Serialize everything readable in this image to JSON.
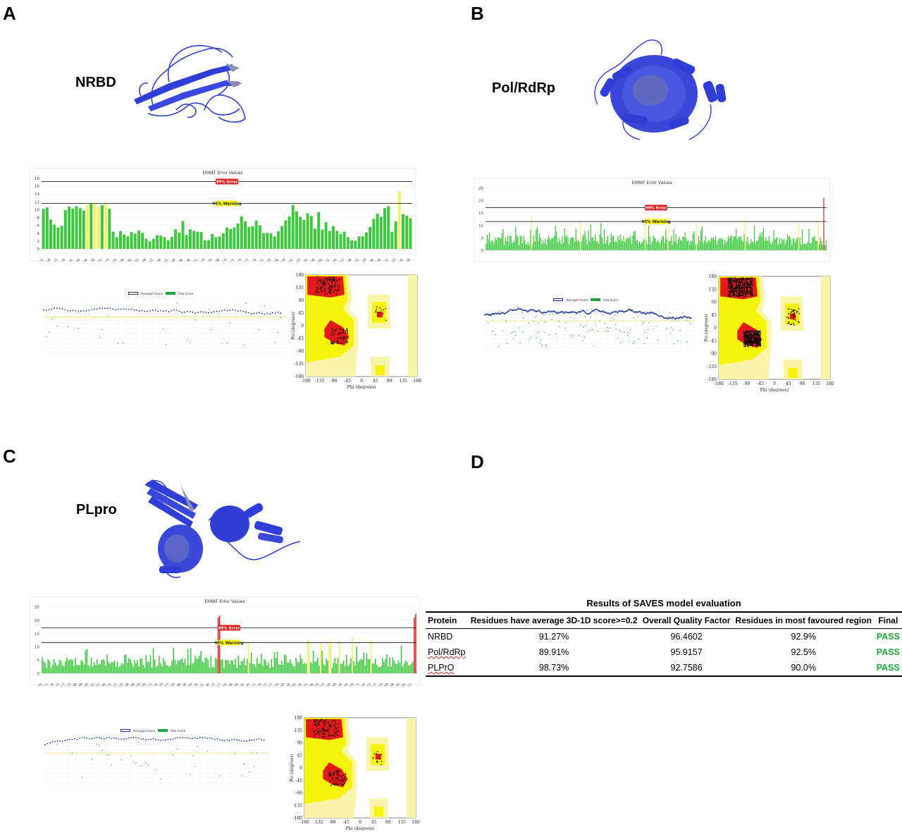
{
  "panels": {
    "A": {
      "letter": "A",
      "protein": "NRBD"
    },
    "B": {
      "letter": "B",
      "protein": "Pol/RdRp"
    },
    "C": {
      "letter": "C",
      "protein": "PLpro"
    },
    "D": {
      "letter": "D"
    }
  },
  "errat": {
    "title": "ERRAT Error Values",
    "error_label": "99% Error",
    "warning_label": "95% Warning"
  },
  "profile_legend": {
    "averaged": "Averaged Score",
    "raw": "Raw Score"
  },
  "rama": {
    "xlabel": "Phi (degrees)",
    "ylabel": "Psi (degrees)"
  },
  "chart_data": [
    {
      "type": "bar",
      "panel": "A",
      "title": "ERRAT Error Values",
      "ylim": [
        0,
        18
      ],
      "yticks": [
        0,
        2,
        4,
        6,
        8,
        10,
        12,
        14,
        16,
        18
      ],
      "x_start": 52,
      "x_end": 168,
      "error_line": 17.2,
      "warning_line": 11.6,
      "values": [
        10.2,
        10.6,
        7.5,
        6.2,
        5.4,
        5.9,
        9.9,
        10.8,
        10.3,
        10.9,
        10.4,
        9.8,
        11.3,
        11.6,
        11.7,
        10.8,
        11.2,
        11.7,
        10.3,
        4.4,
        3.0,
        4.6,
        3.7,
        3.2,
        4.3,
        3.9,
        4.7,
        4.1,
        2.6,
        1.9,
        2.6,
        3.5,
        3.4,
        3.0,
        2.2,
        3.1,
        5.0,
        4.2,
        7.1,
        3.6,
        5.0,
        4.6,
        4.4,
        4.3,
        2.2,
        2.2,
        3.8,
        3.0,
        3.2,
        4.0,
        5.5,
        5.1,
        5.5,
        6.5,
        8.3,
        7.1,
        5.6,
        5.8,
        7.2,
        6.0,
        4.0,
        4.1,
        4.0,
        3.2,
        4.5,
        5.8,
        7.3,
        8.3,
        11.2,
        9.6,
        8.2,
        7.4,
        9.1,
        8.4,
        5.2,
        9.4,
        4.9,
        6.8,
        4.6,
        5.8,
        4.6,
        3.8,
        4.4,
        3.0,
        2.2,
        2.1,
        3.2,
        3.2,
        4.2,
        5.6,
        7.7,
        9.0,
        8.2,
        10.4,
        10.9,
        4.4,
        7.0,
        14.8,
        8.9,
        8.5,
        7.8
      ],
      "warn_idx": [
        12,
        14,
        15,
        17,
        97
      ]
    },
    {
      "type": "bar",
      "panel": "B",
      "title": "ERRAT Error Values",
      "ylim": [
        0,
        25
      ],
      "yticks": [
        0,
        5,
        10,
        15,
        20,
        25
      ],
      "error_line": 17.2,
      "warning_line": 11.6,
      "n": 300,
      "warn_idx": [
        40,
        83,
        140,
        160,
        185,
        228,
        275,
        292
      ],
      "err_idx": [
        297
      ]
    },
    {
      "type": "bar",
      "panel": "C",
      "title": "ERRAT Error Values",
      "ylim": [
        0,
        25
      ],
      "yticks": [
        0,
        5,
        10,
        15,
        20,
        25
      ],
      "x_start": 705,
      "x_end": 1065,
      "error_line": 17.2,
      "warning_line": 11.6,
      "n": 260,
      "warn_idx": [
        143,
        184,
        185,
        193,
        199,
        200,
        206,
        215,
        228
      ],
      "err_idx": [
        122,
        123,
        258,
        259
      ]
    }
  ],
  "table": {
    "title": "Results of SAVES model evaluation",
    "headers": [
      "Protein",
      "Residues have average 3D-1D score>=0.2",
      "Overall Quality Factor",
      "Residues in most favoured region",
      "Final"
    ],
    "rows": [
      {
        "protein": "NRBD",
        "score3d1d": "91.27%",
        "quality": "96.4602",
        "favoured": "92.9%",
        "final": "PASS"
      },
      {
        "protein": "Pol/RdRp",
        "score3d1d": "89.91%",
        "quality": "95.9157",
        "favoured": "92.5%",
        "final": "PASS"
      },
      {
        "protein": "PLPrO",
        "score3d1d": "98.73%",
        "quality": "92.7586",
        "favoured": "90.0%",
        "final": "PASS"
      }
    ]
  },
  "colors": {
    "ribbon": "#2f3ed6",
    "errat_ok": "#3cc83c",
    "errat_warn": "#f3f06a",
    "errat_err": "#e02020",
    "rama_core": "#e41a1a",
    "rama_allowed": "#f7f20a",
    "rama_generous": "#f8f4a8",
    "pass": "#1aa83a"
  }
}
